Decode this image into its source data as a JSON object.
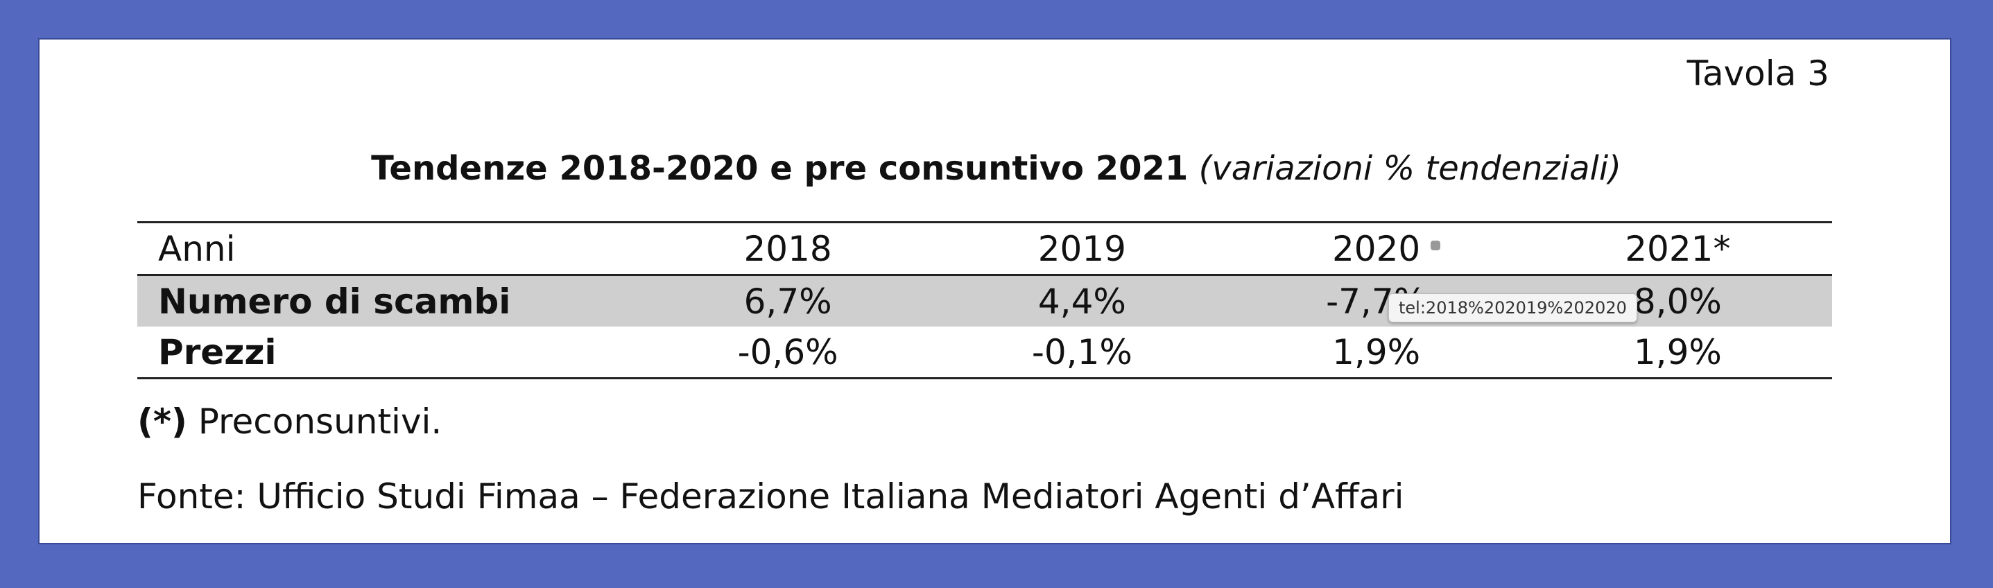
{
  "header": {
    "label": "Tavola 3"
  },
  "title": {
    "main": "Tendenze 2018-2020 e pre consuntivo 2021",
    "note": "(variazioni % tendenziali)"
  },
  "table": {
    "header": [
      "Anni",
      "2018",
      "2019",
      "2020",
      "2021*"
    ],
    "rows": [
      [
        "Numero di scambi",
        "6,7%",
        "4,4%",
        "-7,7%",
        "8,0%"
      ],
      [
        "Prezzi",
        "-0,6%",
        "-0,1%",
        "1,9%",
        "1,9%"
      ]
    ]
  },
  "tooltip": {
    "text": "tel:2018%202019%202020"
  },
  "footnotes": {
    "asterisk": "(*)",
    "asterisk_text": "Preconsuntivi.",
    "source": "Fonte: Ufficio Studi Fimaa – Federazione Italiana Mediatori Agenti d’Affari"
  }
}
